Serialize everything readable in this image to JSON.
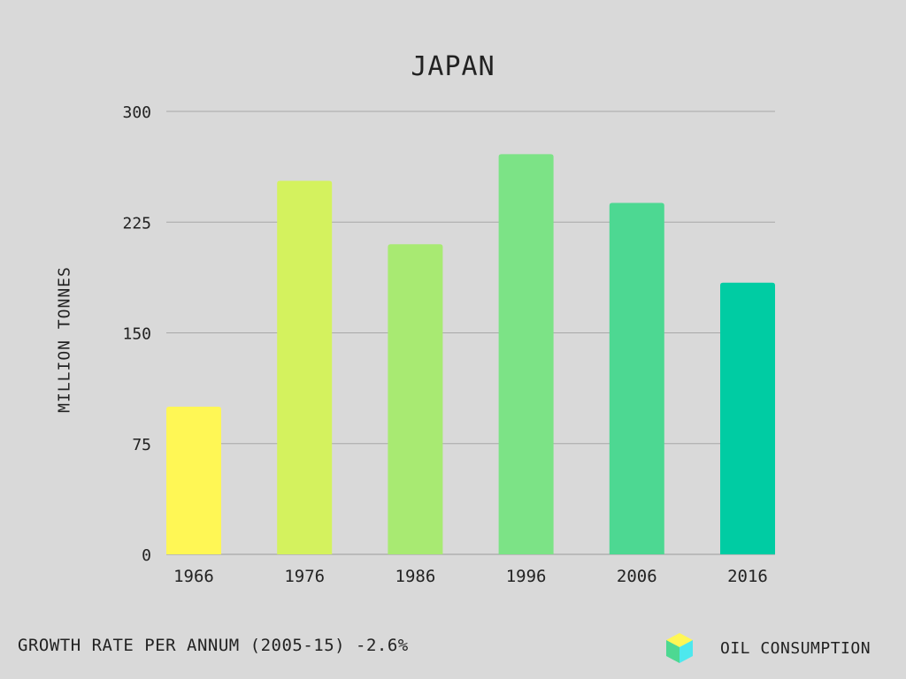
{
  "chart_data": {
    "type": "bar",
    "title": "JAPAN",
    "ylabel": "MILLION TONNES",
    "xlabel": "",
    "categories": [
      "1966",
      "1976",
      "1986",
      "1996",
      "2006",
      "2016"
    ],
    "series": [
      {
        "name": "OIL CONSUMPTION",
        "values": [
          100,
          253,
          210,
          271,
          238,
          184
        ]
      }
    ],
    "bar_colors": [
      "#fff755",
      "#d4f25e",
      "#a8ea72",
      "#7ce386",
      "#4dd892",
      "#00cca3"
    ],
    "ylim": [
      0,
      300
    ],
    "yticks": [
      0,
      75,
      150,
      225,
      300
    ],
    "grid": true,
    "legend": "bottom-right"
  },
  "footer": {
    "growth_rate": "GROWTH RATE PER ANNUM (2005-15) -2.6%"
  },
  "legend": {
    "label": "OIL CONSUMPTION",
    "icon": "cube-icon",
    "colors": [
      "#fff755",
      "#4dd892",
      "#4de8ee"
    ]
  }
}
